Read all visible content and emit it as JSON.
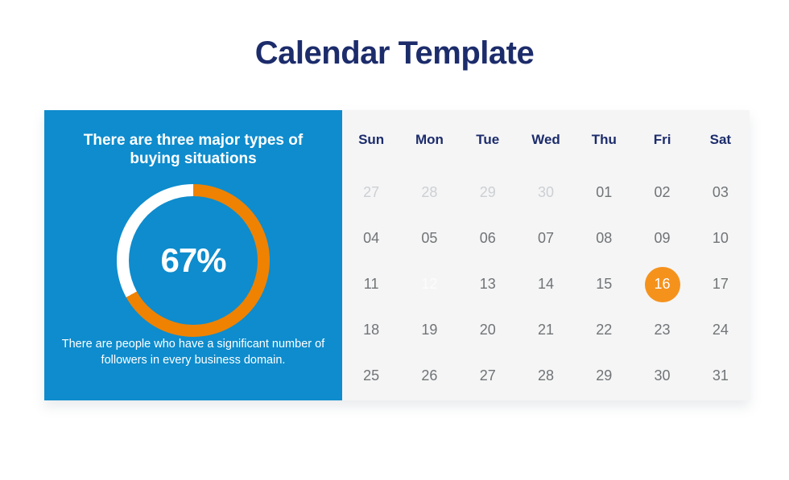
{
  "title": "Calendar Template",
  "colors": {
    "navy": "#1c2c6b",
    "panel-blue": "#0e8ccd",
    "accent-orange": "#ef8200",
    "selected-orange": "#f5921c",
    "panel-gray": "#f5f5f6",
    "date-gray": "#707476",
    "muted-gray": "#ccd0d3",
    "ghost-white": "#fbfcfc"
  },
  "infographic": {
    "heading": "There are three major types of buying situations",
    "percent_label": "67%",
    "percent_value": 67,
    "description": "There are people who have a significant number of followers in every business domain."
  },
  "chart_data": {
    "type": "pie",
    "variant": "donut",
    "title": "There are three major types of buying situations",
    "center_label": "67%",
    "segments": [
      {
        "value": 67,
        "color": "#ef8200",
        "label": "67%"
      },
      {
        "value": 33,
        "color": "#ffffff",
        "label": ""
      }
    ],
    "start_angle_deg": 0,
    "direction": "clockwise",
    "legend_position": "none"
  },
  "calendar": {
    "day_headers": [
      "Sun",
      "Mon",
      "Tue",
      "Wed",
      "Thu",
      "Fri",
      "Sat"
    ],
    "weeks": [
      [
        "27",
        "28",
        "29",
        "30",
        "01",
        "02",
        "03"
      ],
      [
        "04",
        "05",
        "06",
        "07",
        "08",
        "09",
        "10"
      ],
      [
        "11",
        "12",
        "13",
        "14",
        "15",
        "16",
        "17"
      ],
      [
        "18",
        "19",
        "20",
        "21",
        "22",
        "23",
        "24"
      ],
      [
        "25",
        "26",
        "27",
        "28",
        "29",
        "30",
        "31"
      ]
    ],
    "prev_month_days": [
      "27",
      "28",
      "29",
      "30"
    ],
    "faded_day": "12",
    "selected_day": "16"
  }
}
